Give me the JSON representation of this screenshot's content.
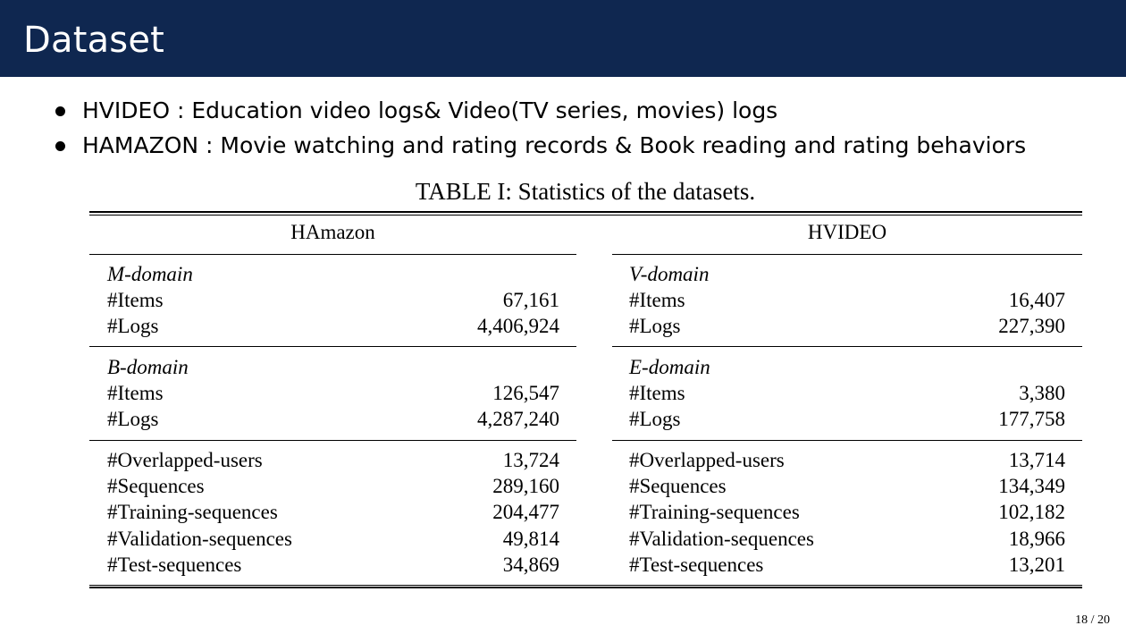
{
  "slide": {
    "title": "Dataset",
    "bullets": [
      "HVIDEO : Education video logs& Video(TV series, movies) logs",
      "HAMAZON : Movie watching and rating records & Book reading and rating behaviors"
    ],
    "page_number": "18 / 20"
  },
  "table": {
    "caption": "TABLE I: Statistics of the datasets.",
    "groups": [
      {
        "header": "HAmazon",
        "sections": [
          {
            "domain": "M-domain",
            "rows": [
              {
                "label": "#Items",
                "value": "67,161"
              },
              {
                "label": "#Logs",
                "value": "4,406,924"
              }
            ]
          },
          {
            "domain": "B-domain",
            "rows": [
              {
                "label": "#Items",
                "value": "126,547"
              },
              {
                "label": "#Logs",
                "value": "4,287,240"
              }
            ]
          },
          {
            "domain": "",
            "rows": [
              {
                "label": "#Overlapped-users",
                "value": "13,724"
              },
              {
                "label": "#Sequences",
                "value": "289,160"
              },
              {
                "label": "#Training-sequences",
                "value": "204,477"
              },
              {
                "label": "#Validation-sequences",
                "value": "49,814"
              },
              {
                "label": "#Test-sequences",
                "value": "34,869"
              }
            ]
          }
        ]
      },
      {
        "header": "HVIDEO",
        "sections": [
          {
            "domain": "V-domain",
            "rows": [
              {
                "label": "#Items",
                "value": "16,407"
              },
              {
                "label": "#Logs",
                "value": "227,390"
              }
            ]
          },
          {
            "domain": "E-domain",
            "rows": [
              {
                "label": "#Items",
                "value": "3,380"
              },
              {
                "label": "#Logs",
                "value": "177,758"
              }
            ]
          },
          {
            "domain": "",
            "rows": [
              {
                "label": "#Overlapped-users",
                "value": "13,714"
              },
              {
                "label": "#Sequences",
                "value": "134,349"
              },
              {
                "label": "#Training-sequences",
                "value": "102,182"
              },
              {
                "label": "#Validation-sequences",
                "value": "18,966"
              },
              {
                "label": "#Test-sequences",
                "value": "13,201"
              }
            ]
          }
        ]
      }
    ]
  }
}
